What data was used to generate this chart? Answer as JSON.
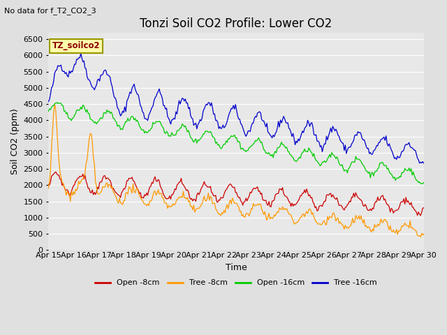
{
  "title": "Tonzi Soil CO2 Profile: Lower CO2",
  "subtitle": "No data for f_T2_CO2_3",
  "xlabel": "Time",
  "ylabel": "Soil CO2 (ppm)",
  "ylim": [
    0,
    6700
  ],
  "yticks": [
    0,
    500,
    1000,
    1500,
    2000,
    2500,
    3000,
    3500,
    4000,
    4500,
    5000,
    5500,
    6000,
    6500
  ],
  "bg_color": "#e0e0e0",
  "plot_bg_color": "#e8e8e8",
  "legend_box_label": "TZ_soilco2",
  "legend_box_color": "#ffffaa",
  "legend_box_edge": "#999900",
  "colors": {
    "open_8cm": "#cc0000",
    "tree_8cm": "#ff9900",
    "open_16cm": "#00cc00",
    "tree_16cm": "#0000cc"
  },
  "legend_entries": [
    "Open -8cm",
    "Tree -8cm",
    "Open -16cm",
    "Tree -16cm"
  ],
  "x_tick_labels": [
    "Apr 15",
    "Apr 16",
    "Apr 17",
    "Apr 18",
    "Apr 19",
    "Apr 20",
    "Apr 21",
    "Apr 22",
    "Apr 23",
    "Apr 24",
    "Apr 25",
    "Apr 26",
    "Apr 27",
    "Apr 28",
    "Apr 29",
    "Apr 30"
  ],
  "title_fontsize": 12,
  "axis_fontsize": 9,
  "tick_fontsize": 8
}
